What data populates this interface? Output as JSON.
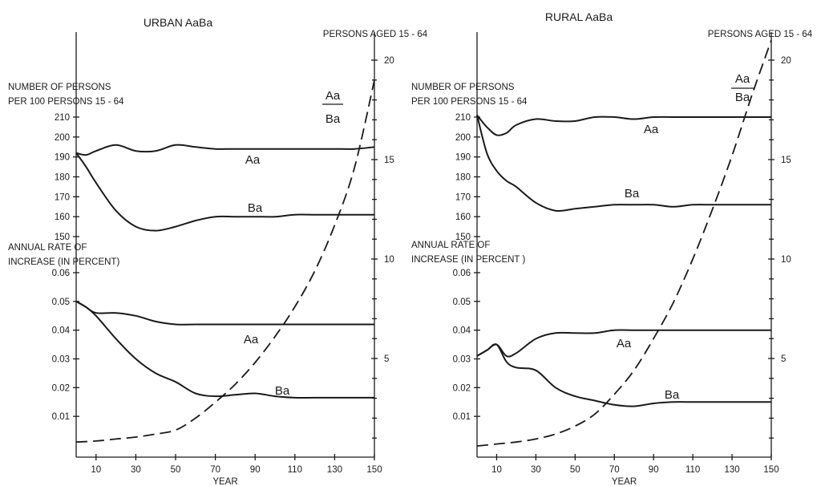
{
  "chart_data": [
    {
      "type": "line",
      "title": "URBAN AaBa",
      "xlabel": "YEAR",
      "xlim": [
        0,
        150
      ],
      "x_ticks": [
        10,
        30,
        50,
        70,
        90,
        110,
        130,
        150
      ],
      "right_axis": {
        "label": "PERSONS AGED 15 - 64",
        "ylim": [
          0,
          21
        ],
        "ticks": [
          5,
          10,
          15,
          20
        ]
      },
      "upper_panel": {
        "ylabel_lines": [
          "NUMBER OF PERSONS",
          "PER 100 PERSONS 15 - 64"
        ],
        "ylim": [
          150,
          210
        ],
        "ticks": [
          150,
          160,
          170,
          180,
          190,
          200,
          210
        ],
        "series": [
          {
            "name": "Aa",
            "x": [
              0,
              5,
              10,
              20,
              30,
              40,
              50,
              60,
              70,
              80,
              90,
              100,
              110,
              120,
              130,
              140,
              150
            ],
            "values": [
              192,
              191,
              193,
              196,
              193,
              193,
              196,
              195,
              194,
              194,
              194,
              194,
              194,
              194,
              194,
              194,
              195
            ]
          },
          {
            "name": "Ba",
            "x": [
              0,
              5,
              10,
              20,
              30,
              40,
              50,
              60,
              70,
              80,
              90,
              100,
              110,
              120,
              130,
              140,
              150
            ],
            "values": [
              192,
              185,
              177,
              163,
              155,
              153,
              155,
              158,
              160,
              160,
              160,
              160,
              161,
              161,
              161,
              161,
              161
            ]
          }
        ]
      },
      "lower_panel": {
        "ylabel_lines": [
          "ANNUAL RATE OF",
          "INCREASE (IN PERCENT)"
        ],
        "ylim": [
          0,
          0.06
        ],
        "ticks": [
          0.01,
          0.02,
          0.03,
          0.04,
          0.05,
          0.06
        ],
        "tick_labels": [
          "0.01",
          "0.02",
          "0.03",
          "0.04",
          "0.05",
          "0.06"
        ],
        "series": [
          {
            "name": "Aa",
            "x": [
              0,
              5,
              10,
              20,
              30,
              40,
              50,
              60,
              70,
              80,
              90,
              100,
              110,
              120,
              130,
              140,
              150
            ],
            "values": [
              0.05,
              0.048,
              0.046,
              0.046,
              0.045,
              0.043,
              0.042,
              0.042,
              0.042,
              0.042,
              0.042,
              0.042,
              0.042,
              0.042,
              0.042,
              0.042,
              0.042
            ]
          },
          {
            "name": "Ba",
            "x": [
              0,
              5,
              10,
              20,
              30,
              40,
              50,
              60,
              70,
              80,
              90,
              100,
              110,
              120,
              130,
              140,
              150
            ],
            "values": [
              0.05,
              0.048,
              0.045,
              0.037,
              0.03,
              0.025,
              0.022,
              0.018,
              0.017,
              0.0175,
              0.018,
              0.017,
              0.0165,
              0.0165,
              0.0165,
              0.0165,
              0.0165
            ]
          }
        ]
      },
      "ratio_series": {
        "label_num": "Aa",
        "label_den": "Ba",
        "x": [
          0,
          10,
          20,
          30,
          40,
          50,
          60,
          70,
          80,
          90,
          100,
          110,
          120,
          130,
          140,
          150
        ],
        "values": [
          0.8,
          0.85,
          0.95,
          1.05,
          1.2,
          1.4,
          2.0,
          2.8,
          3.7,
          4.8,
          6.1,
          7.6,
          9.4,
          11.7,
          14.6,
          19.0
        ]
      }
    },
    {
      "type": "line",
      "title": "RURAL AaBa",
      "xlabel": "YEAR",
      "xlim": [
        0,
        150
      ],
      "x_ticks": [
        10,
        30,
        50,
        70,
        90,
        110,
        130,
        150
      ],
      "right_axis": {
        "label": "PERSONS AGED 15 - 64",
        "ylim": [
          0,
          21
        ],
        "ticks": [
          5,
          10,
          15,
          20
        ]
      },
      "upper_panel": {
        "ylabel_lines": [
          "NUMBER OF PERSONS",
          "PER 100 PERSONS 15 - 64"
        ],
        "ylim": [
          150,
          210
        ],
        "ticks": [
          150,
          160,
          170,
          180,
          190,
          200,
          210
        ],
        "series": [
          {
            "name": "Aa",
            "x": [
              0,
              5,
              10,
              15,
              20,
              30,
              40,
              50,
              60,
              70,
              80,
              90,
              100,
              110,
              120,
              130,
              140,
              150
            ],
            "values": [
              211,
              205,
              201,
              202,
              206,
              209,
              208,
              208,
              210,
              210,
              209,
              210,
              210,
              210,
              210,
              210,
              210,
              210
            ]
          },
          {
            "name": "Ba",
            "x": [
              0,
              5,
              10,
              15,
              20,
              30,
              40,
              50,
              60,
              70,
              80,
              90,
              100,
              110,
              120,
              130,
              140,
              150
            ],
            "values": [
              211,
              192,
              183,
              178,
              175,
              167,
              163,
              164,
              165,
              166,
              166,
              166,
              165,
              166,
              166,
              166,
              166,
              166
            ]
          }
        ]
      },
      "lower_panel": {
        "ylabel_lines": [
          "ANNUAL RATE OF",
          "INCREASE (IN PERCENT )"
        ],
        "ylim": [
          0,
          0.06
        ],
        "ticks": [
          0.01,
          0.02,
          0.03,
          0.04,
          0.05,
          0.06
        ],
        "tick_labels": [
          "0.01",
          "0.02",
          "0.03",
          "0.04",
          "0.05",
          "0.06"
        ],
        "series": [
          {
            "name": "Aa",
            "x": [
              0,
              5,
              10,
              15,
              20,
              30,
              40,
              50,
              60,
              70,
              80,
              90,
              100,
              110,
              120,
              130,
              140,
              150
            ],
            "values": [
              0.031,
              0.033,
              0.035,
              0.031,
              0.032,
              0.037,
              0.039,
              0.039,
              0.039,
              0.04,
              0.04,
              0.04,
              0.04,
              0.04,
              0.04,
              0.04,
              0.04,
              0.04
            ]
          },
          {
            "name": "Ba",
            "x": [
              0,
              5,
              10,
              15,
              20,
              30,
              40,
              50,
              60,
              70,
              80,
              90,
              100,
              110,
              120,
              130,
              140,
              150
            ],
            "values": [
              0.031,
              0.033,
              0.035,
              0.029,
              0.027,
              0.026,
              0.02,
              0.017,
              0.0155,
              0.014,
              0.0135,
              0.0145,
              0.015,
              0.015,
              0.015,
              0.015,
              0.015,
              0.015
            ]
          }
        ]
      },
      "ratio_series": {
        "label_num": "Aa",
        "label_den": "Ba",
        "x": [
          0,
          10,
          20,
          30,
          40,
          50,
          60,
          70,
          80,
          90,
          100,
          110,
          120,
          130,
          140,
          150
        ],
        "values": [
          0.6,
          0.7,
          0.8,
          0.95,
          1.2,
          1.6,
          2.2,
          3.2,
          4.4,
          6.0,
          7.8,
          10.0,
          12.5,
          15.2,
          18.2,
          21.0
        ]
      }
    }
  ]
}
